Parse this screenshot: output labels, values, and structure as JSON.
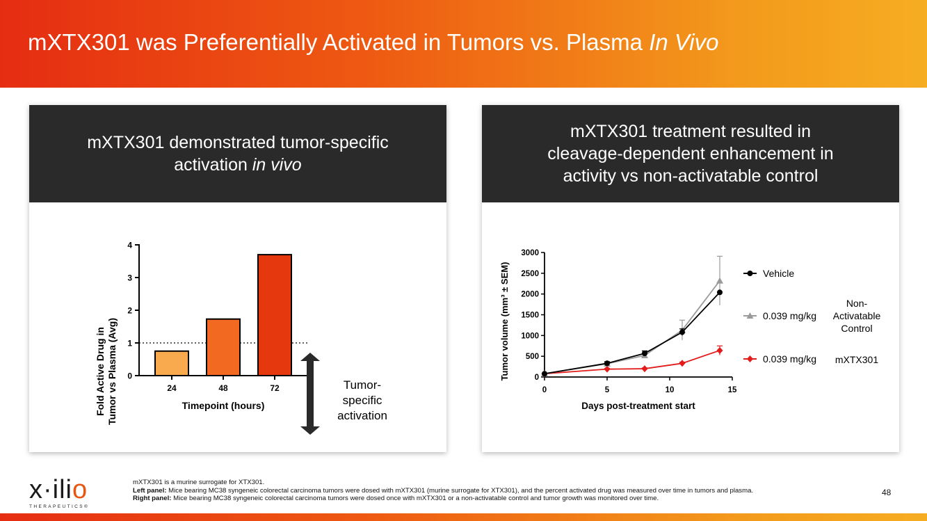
{
  "slide": {
    "title_main": "mXTX301 was Preferentially Activated in Tumors vs. Plasma ",
    "title_italic": "In Vivo",
    "page_number": "48"
  },
  "left_panel": {
    "heading_line1": "mXTX301 demonstrated tumor-specific",
    "heading_line2_prefix": "activation ",
    "heading_line2_italic": "in vivo",
    "annotation_line1": "Tumor-",
    "annotation_line2": "specific",
    "annotation_line3": "activation"
  },
  "right_panel": {
    "heading_line1": "mXTX301 treatment resulted in",
    "heading_line2": "cleavage-dependent enhancement in",
    "heading_line3": "activity vs non-activatable control",
    "group_label_line1": "Non-",
    "group_label_line2": "Activatable",
    "group_label_line3": "Control",
    "group_label_mxtx": "mXTX301"
  },
  "chart_data": [
    {
      "type": "bar",
      "title": "",
      "xlabel": "Timepoint (hours)",
      "ylabel_line1": "Fold Active Drug in",
      "ylabel_line2": "Tumor vs Plasma (Avg)",
      "categories": [
        "24",
        "48",
        "72"
      ],
      "values": [
        0.75,
        1.73,
        3.7
      ],
      "colors": [
        "#f9a94e",
        "#f26a21",
        "#e5380f"
      ],
      "ylim": [
        0,
        4
      ],
      "yticks": [
        "0",
        "1",
        "2",
        "3",
        "4"
      ],
      "reference_line": 1
    },
    {
      "type": "line",
      "title": "",
      "xlabel": "Days post-treatment start",
      "ylabel": "Tumor volume (mm³ ± SEM)",
      "x": [
        0,
        5,
        8,
        11,
        14
      ],
      "xlim": [
        0,
        15
      ],
      "ylim": [
        0,
        3000
      ],
      "xticks": [
        "0",
        "5",
        "10",
        "15"
      ],
      "yticks": [
        "0",
        "500",
        "1000",
        "1500",
        "2000",
        "2500",
        "3000"
      ],
      "series": [
        {
          "name": "Vehicle",
          "color": "#000000",
          "marker": "circle",
          "values": [
            80,
            330,
            570,
            1080,
            2040
          ],
          "errors": [
            0,
            40,
            60,
            80,
            0
          ]
        },
        {
          "name": "0.039 mg/kg",
          "color": "#9a9a9a",
          "marker": "triangle",
          "values": [
            80,
            320,
            520,
            1130,
            2320
          ],
          "errors": [
            0,
            40,
            60,
            240,
            590
          ]
        },
        {
          "name": "0.039 mg/kg",
          "color": "#e31b1b",
          "marker": "diamond",
          "values": [
            80,
            190,
            200,
            330,
            640
          ],
          "errors": [
            0,
            20,
            20,
            30,
            110
          ]
        }
      ]
    }
  ],
  "footnotes": {
    "line1": "mXTX301 is a murine surrogate for XTX301.",
    "line2_label": "Left panel:",
    "line2_text": " Mice bearing MC38 syngeneic colorectal carcinoma tumors were dosed with mXTX301 (murine surrogate for XTX301), and the percent activated drug was measured over time in tumors and plasma.",
    "line3_label": "Right panel:",
    "line3_text": " Mice bearing MC38 syngeneic colorectal carcinoma tumors were dosed once with mXTX301 or a non-activatable control and tumor growth was monitored over time."
  },
  "logo": {
    "word_part1": "x·ili",
    "word_part2": "o",
    "tagline": "THERAPEUTICS®"
  }
}
